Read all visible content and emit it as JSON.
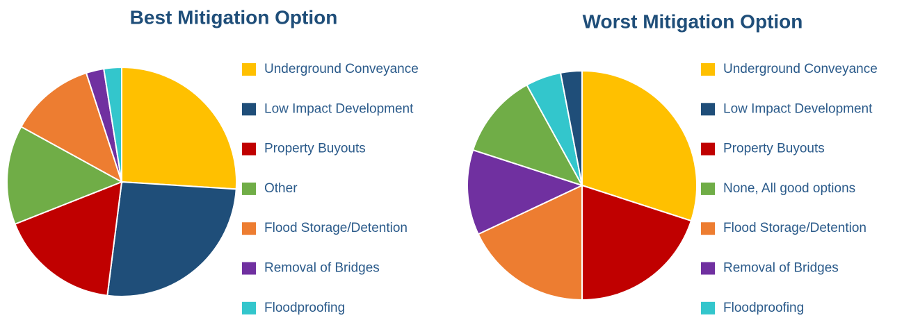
{
  "chart_data": [
    {
      "type": "pie",
      "title": "Best Mitigation Option",
      "categories": [
        "Underground Conveyance",
        "Low Impact Development",
        "Property Buyouts",
        "Other",
        "Flood Storage/Detention",
        "Removal of Bridges",
        "Floodproofing"
      ],
      "values": [
        26,
        26,
        17,
        14,
        12,
        2.5,
        2.5
      ],
      "colors": [
        "#ffc000",
        "#1f4e79",
        "#c00000",
        "#70ad47",
        "#ed7d31",
        "#7030a0",
        "#33c6cc"
      ]
    },
    {
      "type": "pie",
      "title": "Worst Mitigation Option",
      "categories": [
        "Underground Conveyance",
        "Low Impact Development",
        "Property Buyouts",
        "None, All good options",
        "Flood Storage/Detention",
        "Removal of Bridges",
        "Floodproofing"
      ],
      "values": [
        30,
        3,
        20,
        12,
        18,
        12,
        5
      ],
      "colors": [
        "#ffc000",
        "#1f4e79",
        "#c00000",
        "#70ad47",
        "#ed7d31",
        "#7030a0",
        "#33c6cc"
      ]
    }
  ]
}
